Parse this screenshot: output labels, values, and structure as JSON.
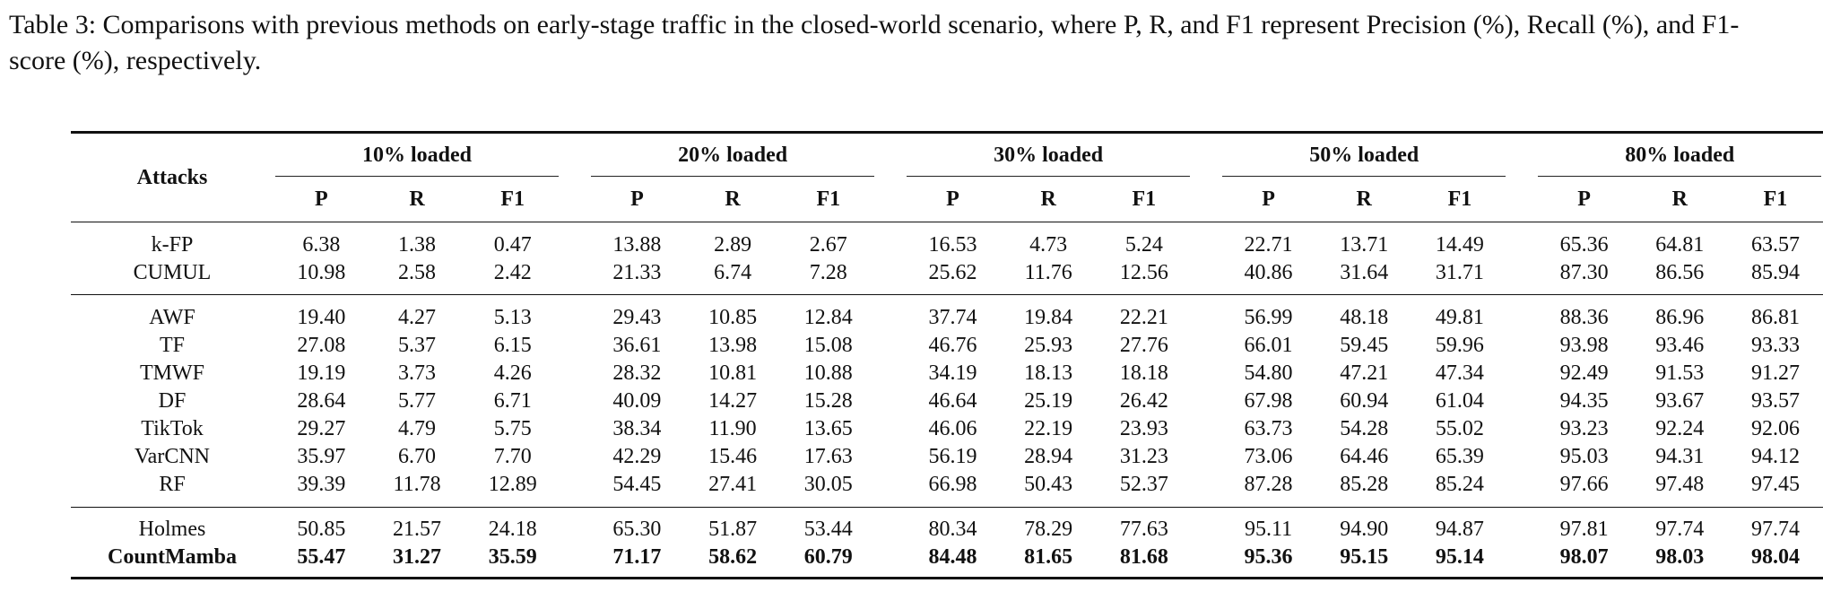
{
  "caption": "Table 3: Comparisons with previous methods on early-stage traffic in the closed-world scenario, where P, R, and F1 represent Precision (%), Recall (%), and F1-score (%), respectively.",
  "table": {
    "row_header": "Attacks",
    "groups": [
      "10% loaded",
      "20% loaded",
      "30% loaded",
      "50% loaded",
      "80% loaded"
    ],
    "metrics": [
      "P",
      "R",
      "F1"
    ],
    "sections": [
      {
        "rows": [
          {
            "name": "k-FP",
            "values": [
              "6.38",
              "1.38",
              "0.47",
              "13.88",
              "2.89",
              "2.67",
              "16.53",
              "4.73",
              "5.24",
              "22.71",
              "13.71",
              "14.49",
              "65.36",
              "64.81",
              "63.57"
            ]
          },
          {
            "name": "CUMUL",
            "values": [
              "10.98",
              "2.58",
              "2.42",
              "21.33",
              "6.74",
              "7.28",
              "25.62",
              "11.76",
              "12.56",
              "40.86",
              "31.64",
              "31.71",
              "87.30",
              "86.56",
              "85.94"
            ]
          }
        ]
      },
      {
        "rows": [
          {
            "name": "AWF",
            "values": [
              "19.40",
              "4.27",
              "5.13",
              "29.43",
              "10.85",
              "12.84",
              "37.74",
              "19.84",
              "22.21",
              "56.99",
              "48.18",
              "49.81",
              "88.36",
              "86.96",
              "86.81"
            ]
          },
          {
            "name": "TF",
            "values": [
              "27.08",
              "5.37",
              "6.15",
              "36.61",
              "13.98",
              "15.08",
              "46.76",
              "25.93",
              "27.76",
              "66.01",
              "59.45",
              "59.96",
              "93.98",
              "93.46",
              "93.33"
            ]
          },
          {
            "name": "TMWF",
            "values": [
              "19.19",
              "3.73",
              "4.26",
              "28.32",
              "10.81",
              "10.88",
              "34.19",
              "18.13",
              "18.18",
              "54.80",
              "47.21",
              "47.34",
              "92.49",
              "91.53",
              "91.27"
            ]
          },
          {
            "name": "DF",
            "values": [
              "28.64",
              "5.77",
              "6.71",
              "40.09",
              "14.27",
              "15.28",
              "46.64",
              "25.19",
              "26.42",
              "67.98",
              "60.94",
              "61.04",
              "94.35",
              "93.67",
              "93.57"
            ]
          },
          {
            "name": "TikTok",
            "values": [
              "29.27",
              "4.79",
              "5.75",
              "38.34",
              "11.90",
              "13.65",
              "46.06",
              "22.19",
              "23.93",
              "63.73",
              "54.28",
              "55.02",
              "93.23",
              "92.24",
              "92.06"
            ]
          },
          {
            "name": "VarCNN",
            "values": [
              "35.97",
              "6.70",
              "7.70",
              "42.29",
              "15.46",
              "17.63",
              "56.19",
              "28.94",
              "31.23",
              "73.06",
              "64.46",
              "65.39",
              "95.03",
              "94.31",
              "94.12"
            ]
          },
          {
            "name": "RF",
            "values": [
              "39.39",
              "11.78",
              "12.89",
              "54.45",
              "27.41",
              "30.05",
              "66.98",
              "50.43",
              "52.37",
              "87.28",
              "85.28",
              "85.24",
              "97.66",
              "97.48",
              "97.45"
            ]
          }
        ]
      },
      {
        "rows": [
          {
            "name": "Holmes",
            "values": [
              "50.85",
              "21.57",
              "24.18",
              "65.30",
              "51.87",
              "53.44",
              "80.34",
              "78.29",
              "77.63",
              "95.11",
              "94.90",
              "94.87",
              "97.81",
              "97.74",
              "97.74"
            ]
          },
          {
            "name": "CountMamba",
            "bold": true,
            "values": [
              "55.47",
              "31.27",
              "35.59",
              "71.17",
              "58.62",
              "60.79",
              "84.48",
              "81.65",
              "81.68",
              "95.36",
              "95.15",
              "95.14",
              "98.07",
              "98.03",
              "98.04"
            ]
          }
        ]
      }
    ]
  }
}
